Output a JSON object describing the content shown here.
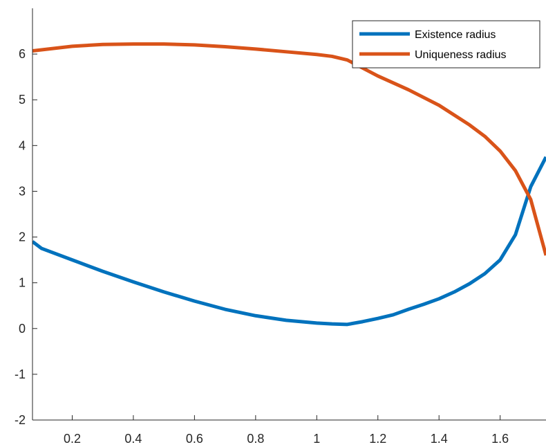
{
  "chart_data": {
    "type": "line",
    "title": "",
    "xlabel": "",
    "ylabel": "",
    "xlim": [
      0.07,
      1.75
    ],
    "ylim": [
      -2,
      7
    ],
    "x_ticks": [
      0.2,
      0.4,
      0.6,
      0.8,
      1,
      1.2,
      1.4,
      1.6
    ],
    "y_ticks": [
      -2,
      -1,
      0,
      1,
      2,
      3,
      4,
      5,
      6
    ],
    "x_tick_labels": [
      "0.2",
      "0.4",
      "0.6",
      "0.8",
      "1",
      "1.2",
      "1.4",
      "1.6"
    ],
    "y_tick_labels": [
      "-2",
      "-1",
      "0",
      "1",
      "2",
      "3",
      "4",
      "5",
      "6"
    ],
    "grid": false,
    "legend_position": "top-right",
    "series": [
      {
        "name": "Existence radius",
        "color": "#0072BD",
        "x": [
          0.07,
          0.1,
          0.2,
          0.3,
          0.4,
          0.5,
          0.6,
          0.7,
          0.8,
          0.9,
          1.0,
          1.05,
          1.1,
          1.15,
          1.2,
          1.25,
          1.3,
          1.35,
          1.4,
          1.45,
          1.5,
          1.55,
          1.6,
          1.65,
          1.7,
          1.75
        ],
        "y": [
          1.9,
          1.75,
          1.5,
          1.25,
          1.02,
          0.8,
          0.6,
          0.42,
          0.28,
          0.18,
          0.12,
          0.1,
          0.09,
          0.15,
          0.22,
          0.3,
          0.42,
          0.53,
          0.65,
          0.8,
          0.98,
          1.2,
          1.5,
          2.05,
          3.1,
          3.75
        ]
      },
      {
        "name": "Uniqueness radius",
        "color": "#D95319",
        "x": [
          0.07,
          0.2,
          0.3,
          0.4,
          0.5,
          0.6,
          0.7,
          0.8,
          0.9,
          1.0,
          1.05,
          1.1,
          1.2,
          1.3,
          1.4,
          1.5,
          1.55,
          1.6,
          1.65,
          1.7,
          1.75
        ],
        "y": [
          6.07,
          6.17,
          6.21,
          6.22,
          6.22,
          6.2,
          6.16,
          6.11,
          6.05,
          5.99,
          5.95,
          5.87,
          5.52,
          5.22,
          4.88,
          4.45,
          4.2,
          3.88,
          3.45,
          2.82,
          1.6
        ]
      }
    ]
  }
}
